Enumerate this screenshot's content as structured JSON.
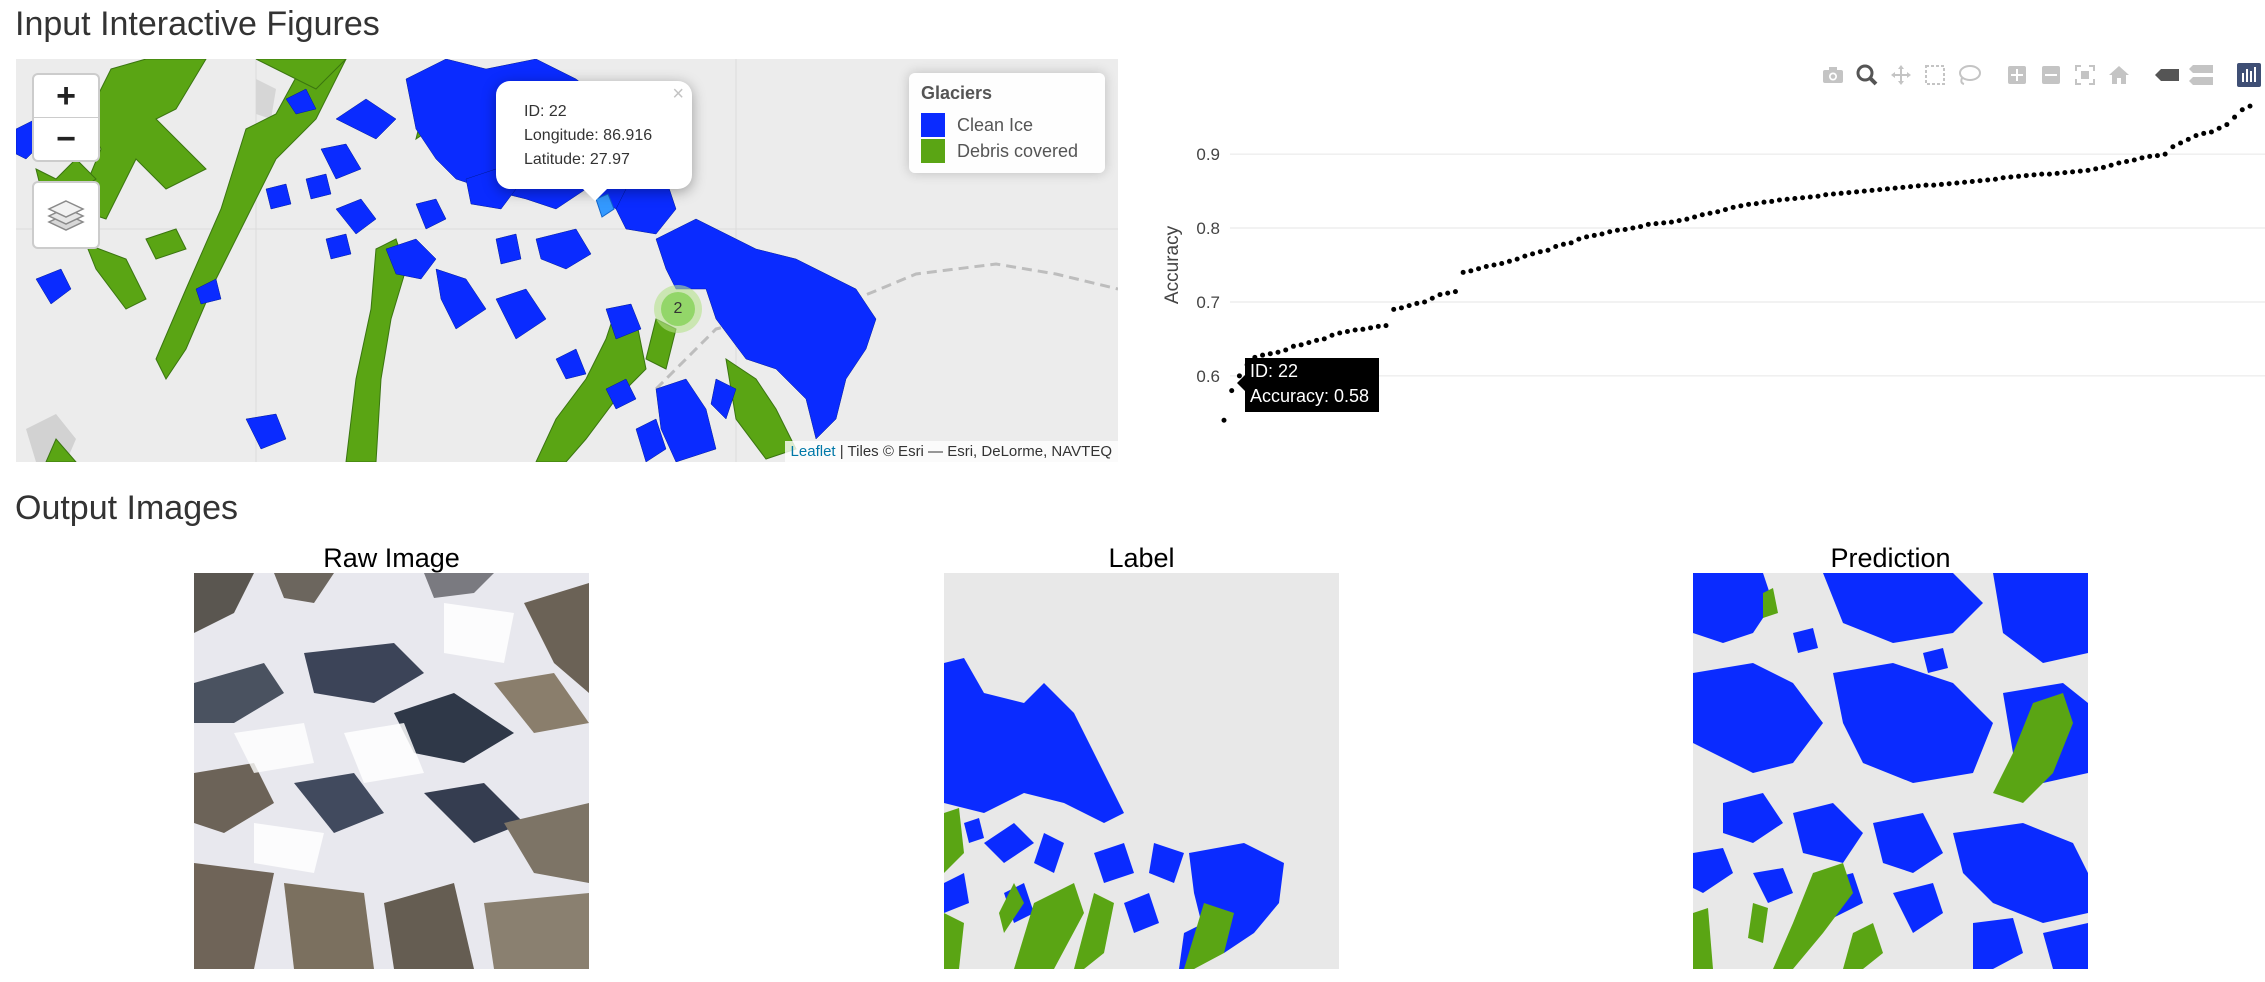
{
  "sections": {
    "input_title": "Input Interactive Figures",
    "output_title": "Output Images"
  },
  "map": {
    "zoom_in": "+",
    "zoom_out": "−",
    "popup": {
      "close": "×",
      "id_line": "ID: 22",
      "lon_line": "Longitude: 86.916",
      "lat_line": "Latitude: 27.97"
    },
    "cluster_count": "2",
    "legend": {
      "title": "Glaciers",
      "items": [
        {
          "label": "Clean Ice",
          "color": "#0a2bff"
        },
        {
          "label": "Debris covered",
          "color": "#5aa514"
        }
      ]
    },
    "attribution": {
      "link": "Leaflet",
      "text": "| Tiles © Esri — Esri, DeLorme, NAVTEQ"
    }
  },
  "scatter": {
    "modebar_icons": [
      "camera-icon",
      "zoom-icon",
      "pan-icon",
      "box-select-icon",
      "lasso-icon",
      "zoom-in-icon",
      "zoom-out-icon",
      "autoscale-icon",
      "reset-axes-icon",
      "hover-closest-icon",
      "hover-compare-icon",
      "plotly-logo-icon"
    ],
    "hover": {
      "id_line": "ID:  22",
      "acc_line": "Accuracy:  0.58"
    }
  },
  "chart_data": {
    "type": "scatter",
    "title": "",
    "xlabel": "",
    "ylabel": "Accuracy",
    "ylim": [
      0.52,
      0.98
    ],
    "yticks": [
      0.6,
      0.7,
      0.8,
      0.9
    ],
    "grid": true,
    "legend": "none",
    "marker_color": "#000000",
    "series": [
      {
        "values": [
          0.54,
          0.58,
          0.6,
          0.615,
          0.625,
          0.628,
          0.63,
          0.632,
          0.635,
          0.64,
          0.642,
          0.645,
          0.648,
          0.65,
          0.655,
          0.658,
          0.66,
          0.662,
          0.663,
          0.665,
          0.667,
          0.668,
          0.69,
          0.692,
          0.695,
          0.698,
          0.7,
          0.705,
          0.71,
          0.712,
          0.714,
          0.74,
          0.742,
          0.745,
          0.748,
          0.75,
          0.752,
          0.755,
          0.758,
          0.762,
          0.765,
          0.768,
          0.77,
          0.775,
          0.778,
          0.78,
          0.785,
          0.788,
          0.79,
          0.792,
          0.795,
          0.797,
          0.798,
          0.8,
          0.802,
          0.805,
          0.806,
          0.807,
          0.808,
          0.81,
          0.812,
          0.815,
          0.818,
          0.82,
          0.822,
          0.825,
          0.828,
          0.83,
          0.832,
          0.833,
          0.835,
          0.836,
          0.838,
          0.839,
          0.84,
          0.841,
          0.842,
          0.843,
          0.845,
          0.846,
          0.847,
          0.848,
          0.849,
          0.85,
          0.851,
          0.852,
          0.853,
          0.854,
          0.855,
          0.856,
          0.857,
          0.858,
          0.858,
          0.859,
          0.86,
          0.861,
          0.862,
          0.863,
          0.864,
          0.865,
          0.866,
          0.868,
          0.869,
          0.87,
          0.871,
          0.872,
          0.873,
          0.873,
          0.874,
          0.875,
          0.876,
          0.877,
          0.878,
          0.88,
          0.882,
          0.885,
          0.888,
          0.89,
          0.892,
          0.895,
          0.897,
          0.898,
          0.9,
          0.91,
          0.915,
          0.92,
          0.925,
          0.928,
          0.93,
          0.935,
          0.94,
          0.95,
          0.96,
          0.965
        ]
      }
    ]
  },
  "outputs": {
    "raw_title": "Raw Image",
    "label_title": "Label",
    "prediction_title": "Prediction"
  }
}
